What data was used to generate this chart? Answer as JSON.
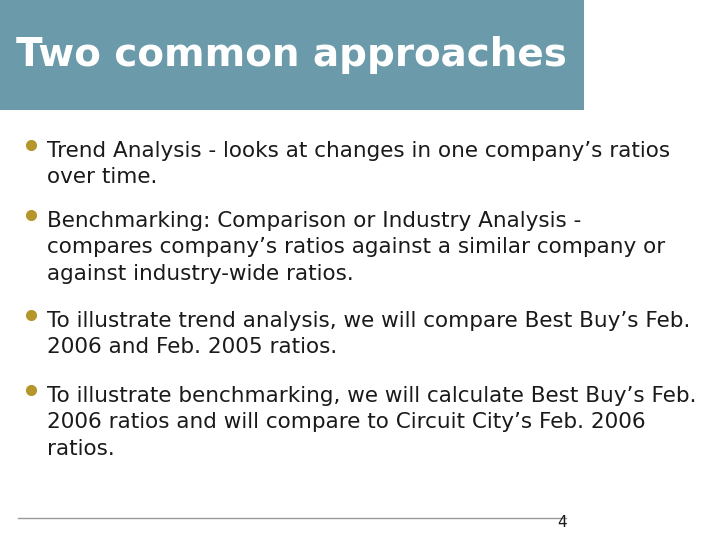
{
  "title": "Two common approaches",
  "title_bg_color": "#6b9aaa",
  "title_text_color": "#ffffff",
  "background_color": "#ffffff",
  "bullet_color": "#b5962a",
  "text_color": "#1a1a1a",
  "separator_color": "#999999",
  "bullet_points_group1": [
    "Trend Analysis - looks at changes in one company’s ratios\nover time.",
    "Benchmarking: Comparison or Industry Analysis -\ncompares company’s ratios against a similar company or\nagainst industry-wide ratios."
  ],
  "bullet_points_group2": [
    "To illustrate trend analysis, we will compare Best Buy’s Feb.\n2006 and Feb. 2005 ratios.",
    "To illustrate benchmarking, we will calculate Best Buy’s Feb.\n2006 ratios and will compare to Circuit City’s Feb. 2006\nratios."
  ],
  "page_number": "4",
  "font_size_title": 28,
  "font_size_body": 15.5,
  "font_size_page": 11
}
